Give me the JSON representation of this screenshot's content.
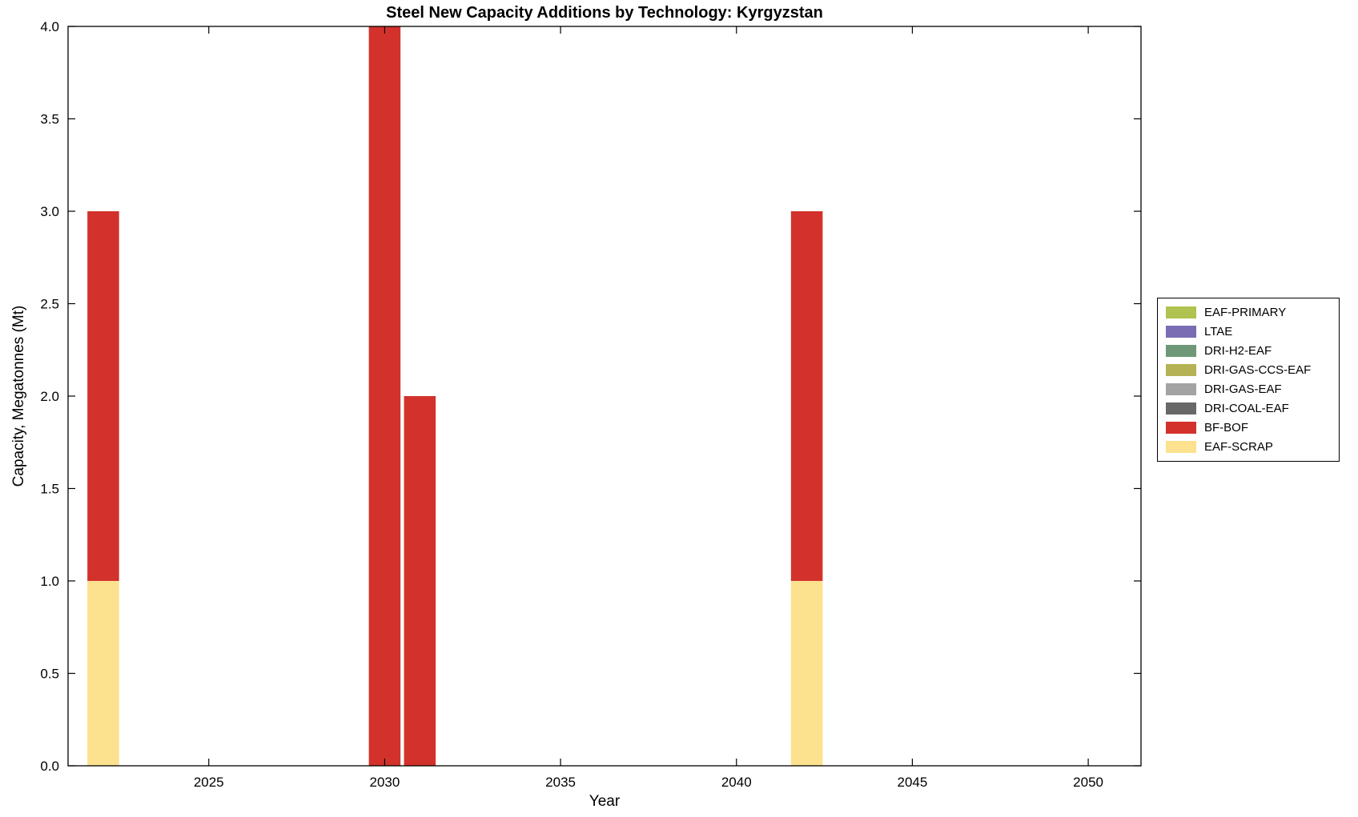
{
  "chart_data": {
    "type": "bar",
    "stacked": true,
    "title": "Steel New Capacity Additions by Technology: Kyrgyzstan",
    "xlabel": "Year",
    "ylabel": "Capacity, Megatonnes (Mt)",
    "xlim": [
      2021,
      2051.5
    ],
    "ylim": [
      0,
      4
    ],
    "grid": false,
    "legend_position": "right-outside",
    "xtick_values": [
      2025,
      2030,
      2035,
      2040,
      2045,
      2050
    ],
    "xtick_labels": [
      "2025",
      "2030",
      "2035",
      "2040",
      "2045",
      "2050"
    ],
    "ytick_values": [
      0,
      0.5,
      1,
      1.5,
      2,
      2.5,
      3,
      3.5,
      4
    ],
    "ytick_labels": [
      "0.0",
      "0.5",
      "1.0",
      "1.5",
      "2.0",
      "2.5",
      "3.0",
      "3.5",
      "4.0"
    ],
    "bar_width_years": 0.9,
    "legend": [
      {
        "label": "EAF-PRIMARY",
        "color": "#b0c24f"
      },
      {
        "label": "LTAE",
        "color": "#7a6db4"
      },
      {
        "label": "DRI-H2-EAF",
        "color": "#6e9878"
      },
      {
        "label": "DRI-GAS-CCS-EAF",
        "color": "#b4b254"
      },
      {
        "label": "DRI-GAS-EAF",
        "color": "#a3a3a3"
      },
      {
        "label": "DRI-COAL-EAF",
        "color": "#686868"
      },
      {
        "label": "BF-BOF",
        "color": "#d2322b"
      },
      {
        "label": "EAF-SCRAP",
        "color": "#fce18f"
      }
    ],
    "bars": [
      {
        "x": 2022,
        "total": 3.0,
        "segments": [
          {
            "series": "EAF-SCRAP",
            "value": 1.0
          },
          {
            "series": "BF-BOF",
            "value": 2.0
          }
        ]
      },
      {
        "x": 2030,
        "total": 4.0,
        "segments": [
          {
            "series": "BF-BOF",
            "value": 4.0
          }
        ]
      },
      {
        "x": 2031,
        "total": 2.0,
        "segments": [
          {
            "series": "BF-BOF",
            "value": 2.0
          }
        ]
      },
      {
        "x": 2042,
        "total": 3.0,
        "segments": [
          {
            "series": "EAF-SCRAP",
            "value": 1.0
          },
          {
            "series": "BF-BOF",
            "value": 2.0
          }
        ]
      }
    ]
  }
}
